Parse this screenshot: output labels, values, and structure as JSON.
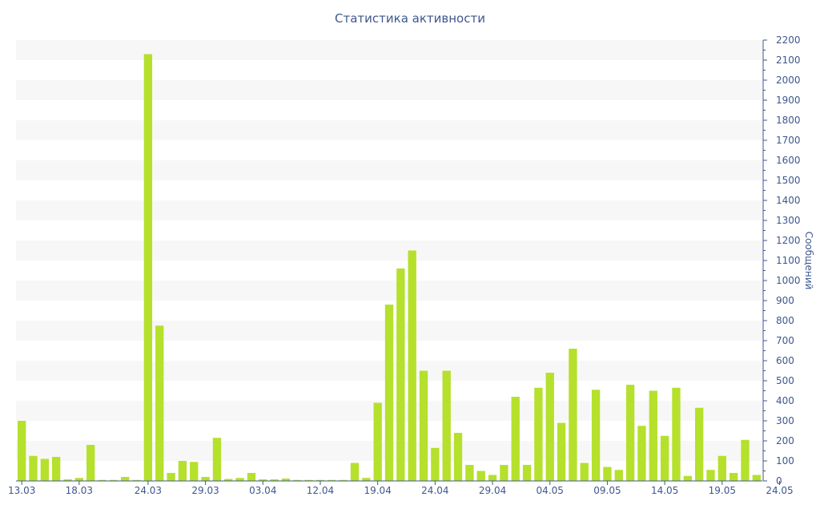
{
  "chart_data": {
    "type": "bar",
    "title": "Статистика активности",
    "ylabel": "Сообщений",
    "xlabel": "",
    "ylim": [
      0,
      2200
    ],
    "y_tick_step": 100,
    "y_axis_side": "right",
    "grid": "alternating horizontal bands",
    "colors": {
      "bar": "#b5e02c",
      "band": "#f7f7f7",
      "text": "#3e578e",
      "axis": "#3e578e"
    },
    "x_tick_labels": [
      "13.03",
      "18.03",
      "24.03",
      "29.03",
      "03.04",
      "12.04",
      "19.04",
      "24.04",
      "29.04",
      "04.05",
      "09.05",
      "14.05",
      "19.05",
      "24.05"
    ],
    "x_tick_positions": [
      0,
      5,
      11,
      16,
      21,
      26,
      31,
      36,
      41,
      46,
      51,
      56,
      61,
      66
    ],
    "values": [
      300,
      125,
      110,
      120,
      8,
      15,
      180,
      5,
      5,
      20,
      5,
      2130,
      775,
      40,
      100,
      95,
      20,
      215,
      10,
      15,
      40,
      8,
      8,
      12,
      5,
      5,
      5,
      5,
      5,
      90,
      15,
      390,
      880,
      1060,
      1150,
      550,
      165,
      550,
      240,
      80,
      50,
      30,
      80,
      420,
      80,
      465,
      540,
      290,
      660,
      90,
      455,
      70,
      55,
      480,
      275,
      450,
      225,
      465,
      25,
      365,
      55,
      125,
      40,
      205,
      30
    ]
  }
}
